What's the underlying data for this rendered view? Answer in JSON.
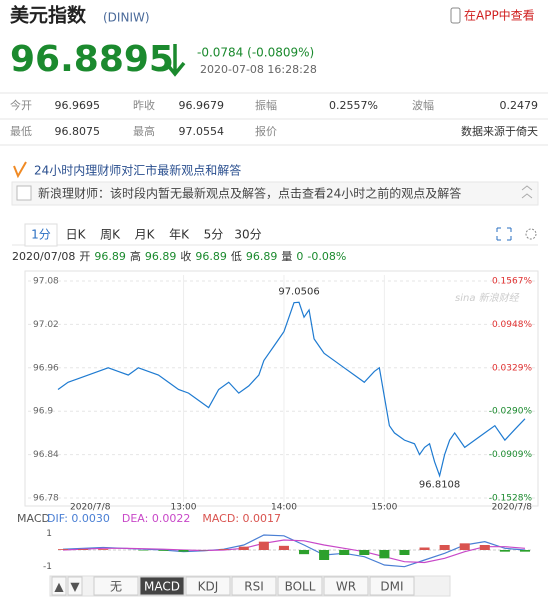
{
  "header": {
    "title": "美元指数",
    "code": "(DINIW)",
    "app_link": "在APP中查看"
  },
  "quote": {
    "price": "96.8895",
    "change": "-0.0784 (-0.0809%)",
    "time": "2020-07-08 16:28:28"
  },
  "quote_table": {
    "rows": [
      [
        "今开",
        "96.9695",
        "昨收",
        "96.9679",
        "振幅",
        "0.2557%",
        "波幅",
        "0.2479"
      ],
      [
        "最低",
        "96.8075",
        "最高",
        "97.0554",
        "报价",
        "数据来源于倚天"
      ]
    ]
  },
  "banner": {
    "title": "24小时内理财师对汇市最新观点和解答",
    "message": "新浪理财师：该时段内暂无最新观点及解答，点击查看24小时之前的观点及解答"
  },
  "tabs": [
    "1分",
    "日K",
    "周K",
    "月K",
    "年K",
    "5分",
    "30分"
  ],
  "info_bar": {
    "date": "2020/07/08",
    "items": [
      [
        "开",
        "96.89"
      ],
      [
        "高",
        "96.89"
      ],
      [
        "收",
        "96.89"
      ],
      [
        "低",
        "96.89"
      ],
      [
        "量",
        "0"
      ]
    ],
    "change": "-0.08%"
  },
  "indicator_tabs": [
    "▲",
    "▼",
    "无",
    "MACD",
    "KDJ",
    "RSI",
    "BOLL",
    "WR",
    "DMI"
  ],
  "chart_data": [
    {
      "type": "line",
      "color": "#1f7bd1",
      "grid": true,
      "x": [
        11.75,
        11.85,
        11.95,
        12.05,
        12.15,
        12.25,
        12.35,
        12.45,
        12.55,
        12.65,
        12.75,
        12.85,
        12.95,
        13.05,
        13.15,
        13.25,
        13.35,
        13.45,
        13.55,
        13.65,
        13.75,
        13.8,
        13.85,
        13.9,
        13.95,
        14.0,
        14.05,
        14.1,
        14.15,
        14.2,
        14.25,
        14.3,
        14.35,
        14.4,
        14.5,
        14.6,
        14.7,
        14.8,
        14.9,
        14.95,
        15.0,
        15.05,
        15.1,
        15.2,
        15.3,
        15.35,
        15.4,
        15.45,
        15.5,
        15.55,
        15.6,
        15.65,
        15.7,
        15.8,
        15.9,
        16.0,
        16.1,
        16.2,
        16.3,
        16.4
      ],
      "values": [
        96.93,
        96.94,
        96.945,
        96.95,
        96.955,
        96.96,
        96.955,
        96.95,
        96.96,
        96.955,
        96.95,
        96.94,
        96.93,
        96.925,
        96.915,
        96.905,
        96.93,
        96.94,
        96.925,
        96.935,
        96.95,
        96.97,
        96.98,
        96.99,
        97.0,
        97.01,
        97.03,
        97.05,
        97.0506,
        97.03,
        97.04,
        97.0,
        96.99,
        96.98,
        96.97,
        96.96,
        96.95,
        96.94,
        96.955,
        96.96,
        96.92,
        96.88,
        96.87,
        96.86,
        96.855,
        96.84,
        96.85,
        96.855,
        96.83,
        96.8108,
        96.84,
        96.86,
        96.87,
        96.85,
        96.86,
        96.87,
        96.88,
        96.86,
        96.875,
        96.8895
      ],
      "xlim": [
        11.75,
        16.47
      ],
      "xticks": [
        {
          "value": 11.75,
          "label": "2020/7/8"
        },
        {
          "value": 13,
          "label": "13:00"
        },
        {
          "value": 14,
          "label": "14:00"
        },
        {
          "value": 15,
          "label": "15:00"
        },
        {
          "value": 16.47,
          "label": "2020/7/8"
        }
      ],
      "ylim": [
        96.78,
        97.08
      ],
      "yticks": [
        97.08,
        97.02,
        96.96,
        96.9,
        96.84,
        96.78
      ],
      "y2lim": [
        -0.1528,
        0.1567
      ],
      "y2ticks": [
        {
          "value": 0.1567,
          "label": "0.1567%"
        },
        {
          "value": 0.0948,
          "label": "0.0948%"
        },
        {
          "value": 0.0329,
          "label": "0.0329%"
        },
        {
          "value": -0.029,
          "label": "-0.0290%"
        },
        {
          "value": -0.0909,
          "label": "-0.0909%"
        },
        {
          "value": -0.1528,
          "label": "-0.1528%"
        }
      ],
      "annotations": [
        {
          "x": 14.15,
          "y": 97.0506
        },
        {
          "x": 15.55,
          "y": 96.8108
        }
      ]
    },
    {
      "type": "macd",
      "title": "MACD",
      "x": [
        11.8,
        12.0,
        12.2,
        12.4,
        12.6,
        12.8,
        13.0,
        13.2,
        13.4,
        13.6,
        13.8,
        14.0,
        14.2,
        14.4,
        14.6,
        14.8,
        15.0,
        15.2,
        15.4,
        15.6,
        15.8,
        16.0,
        16.2,
        16.4
      ],
      "series": [
        {
          "name": "DIF: 0.0030",
          "color": "#4a7fd4",
          "values": [
            0.05,
            0.1,
            0.15,
            0.1,
            0.05,
            0.0,
            -0.1,
            -0.05,
            0.05,
            0.3,
            0.9,
            0.85,
            0.3,
            -0.3,
            -0.2,
            -0.4,
            -0.9,
            -1.0,
            -0.6,
            -0.2,
            0.3,
            0.5,
            0.1,
            0.0
          ]
        },
        {
          "name": "DEA: 0.0022",
          "color": "#c848c8",
          "values": [
            0.0,
            0.05,
            0.1,
            0.1,
            0.08,
            0.05,
            0.0,
            -0.03,
            0.0,
            0.1,
            0.4,
            0.6,
            0.55,
            0.3,
            0.1,
            -0.1,
            -0.4,
            -0.7,
            -0.75,
            -0.5,
            -0.1,
            0.2,
            0.2,
            0.1
          ]
        },
        {
          "name": "MACD: 0.0017",
          "color": "#d9534f",
          "down_color": "#2ca02c",
          "bars": true,
          "values": [
            0.05,
            0.05,
            0.05,
            0,
            -0.03,
            -0.05,
            -0.1,
            -0.02,
            0.05,
            0.2,
            0.5,
            0.25,
            -0.25,
            -0.6,
            -0.3,
            -0.3,
            -0.5,
            -0.3,
            0.15,
            0.3,
            0.4,
            0.3,
            -0.1,
            -0.1
          ]
        }
      ],
      "xlim": [
        11.75,
        16.47
      ],
      "ylim": [
        -1.5,
        1.5
      ],
      "yticks": [
        1,
        -1
      ]
    }
  ]
}
